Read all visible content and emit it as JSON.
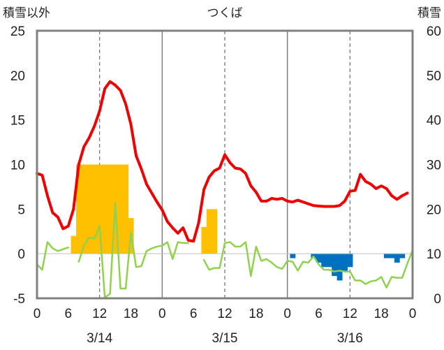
{
  "colors": {
    "temp": "#ee0000",
    "green": "#92d050",
    "orange": "#ffc000",
    "blue": "#0070c0",
    "baseline": "#7030a0",
    "frame": "#808080"
  },
  "chart_data": {
    "type": "bar+line",
    "title": "つくば",
    "ylabel_left": "積雪以外",
    "ylabel_right": "積雪",
    "ylim_left": [
      -5,
      25
    ],
    "ylim_right": [
      0,
      60
    ],
    "y_ticks_left": [
      "25",
      "20",
      "15",
      "10",
      "5",
      "0",
      "-5"
    ],
    "y_ticks_right": [
      "60",
      "50",
      "40",
      "30",
      "20",
      "10",
      "0"
    ],
    "x_hour_ticks": [
      "0",
      "6",
      "12",
      "18",
      "0",
      "6",
      "12",
      "18",
      "0",
      "6",
      "12",
      "18",
      "0"
    ],
    "date_labels": [
      "3/14",
      "3/15",
      "3/16"
    ],
    "x_range_hours": [
      0,
      72
    ],
    "grid": "vertical dashed at 12h, solid at 24h",
    "series": [
      {
        "kind": "bar",
        "color": "orange",
        "values": [
          {
            "h": 7,
            "v": 2
          },
          {
            "h": 8,
            "v": 10
          },
          {
            "h": 9,
            "v": 10
          },
          {
            "h": 10,
            "v": 10
          },
          {
            "h": 11,
            "v": 10
          },
          {
            "h": 12,
            "v": 10
          },
          {
            "h": 13,
            "v": 10
          },
          {
            "h": 14,
            "v": 10
          },
          {
            "h": 15,
            "v": 10
          },
          {
            "h": 16,
            "v": 10
          },
          {
            "h": 17,
            "v": 10
          },
          {
            "h": 18,
            "v": 4
          },
          {
            "h": 32,
            "v": 3
          },
          {
            "h": 33,
            "v": 5
          },
          {
            "h": 34,
            "v": 5
          }
        ]
      },
      {
        "kind": "bar",
        "color": "blue",
        "values": [
          {
            "h": 49,
            "v": -0.5
          },
          {
            "h": 53,
            "v": -0.5
          },
          {
            "h": 54,
            "v": -1
          },
          {
            "h": 55,
            "v": -1.5
          },
          {
            "h": 56,
            "v": -1.5
          },
          {
            "h": 57,
            "v": -2.5
          },
          {
            "h": 58,
            "v": -3
          },
          {
            "h": 59,
            "v": -2
          },
          {
            "h": 60,
            "v": -1.5
          },
          {
            "h": 67,
            "v": -0.5
          },
          {
            "h": 68,
            "v": -0.5
          },
          {
            "h": 69,
            "v": -1
          },
          {
            "h": 70,
            "v": -0.5
          }
        ]
      },
      {
        "kind": "line",
        "color": "temp",
        "x": [
          0,
          1,
          2,
          3,
          4,
          5,
          6,
          7,
          8,
          9,
          10,
          11,
          12,
          13,
          14,
          15,
          16,
          17,
          18,
          19,
          20,
          21,
          22,
          23,
          24,
          25,
          26,
          27,
          28,
          29,
          30,
          31,
          32,
          33,
          34,
          35,
          36,
          37,
          38,
          39,
          40,
          41,
          42,
          43,
          44,
          45,
          46,
          47,
          48,
          49,
          50,
          51,
          52,
          53,
          54,
          55,
          56,
          57,
          58,
          59,
          60,
          61,
          62,
          63,
          64,
          65,
          66,
          67,
          68,
          69,
          70,
          71
        ],
        "y": [
          9,
          8.8,
          6.5,
          4.6,
          4.1,
          2.8,
          3.1,
          5,
          10,
          12,
          13,
          14.3,
          16,
          18.5,
          19.3,
          18.9,
          18.3,
          16.8,
          14.5,
          11,
          9.5,
          7.8,
          6.8,
          5.8,
          4.9,
          3.6,
          2.9,
          2.3,
          2.9,
          1.5,
          1.4,
          3.5,
          7.2,
          8.6,
          9.3,
          9.6,
          11.1,
          10.2,
          9.6,
          9.5,
          9,
          7.6,
          6.9,
          5.9,
          5.9,
          6.2,
          6.1,
          6.2,
          5.9,
          5.8,
          6,
          5.8,
          5.6,
          5.4,
          5.35,
          5.3,
          5.3,
          5.3,
          5.4,
          5.9,
          7,
          7.1,
          8.9,
          8.1,
          7.8,
          7.3,
          7.6,
          7.3,
          6.5,
          6.1,
          6.5,
          6.8
        ]
      },
      {
        "kind": "line",
        "color": "green",
        "x": [
          0,
          1,
          2,
          3,
          4,
          5,
          6,
          8,
          9,
          10,
          11,
          12,
          13,
          14,
          15,
          16,
          17,
          18,
          19,
          20,
          21,
          22,
          23,
          24,
          25,
          26,
          27,
          28,
          29,
          32,
          33,
          34,
          35,
          36,
          37,
          38,
          39,
          40,
          41,
          42,
          43,
          44,
          45,
          46,
          47,
          48,
          49,
          50,
          51,
          52,
          53,
          54,
          55,
          56,
          57,
          58,
          59,
          60,
          61,
          62,
          63,
          64,
          65,
          66,
          67,
          68,
          69,
          70,
          71,
          72
        ],
        "y": [
          -1.2,
          -1.8,
          1.3,
          0.6,
          0.3,
          0.5,
          0.7,
          -0.9,
          0.9,
          1.8,
          1.7,
          3.1,
          -4.9,
          -4.5,
          5.7,
          -3.9,
          -3.9,
          2.4,
          -1.5,
          -1.4,
          0.3,
          0.6,
          0.8,
          0.9,
          1.3,
          -0.6,
          1.3,
          1.2,
          1.2,
          -0.7,
          -1.8,
          -1.6,
          -1.6,
          1.2,
          1.3,
          0.8,
          0.8,
          1.3,
          -2.5,
          0.8,
          -0.8,
          -0.6,
          -1,
          -1.5,
          -1.7,
          -0.8,
          -0.9,
          -1.9,
          -0.9,
          -1,
          -0.3,
          -1.2,
          -1.8,
          -1.8,
          -2,
          -1.9,
          -2,
          -2,
          -3,
          -3,
          -3.4,
          -3.1,
          -3,
          -2.6,
          -3.8,
          -2.6,
          -2.7,
          -2.7,
          -1.1,
          0.4
        ]
      }
    ]
  }
}
